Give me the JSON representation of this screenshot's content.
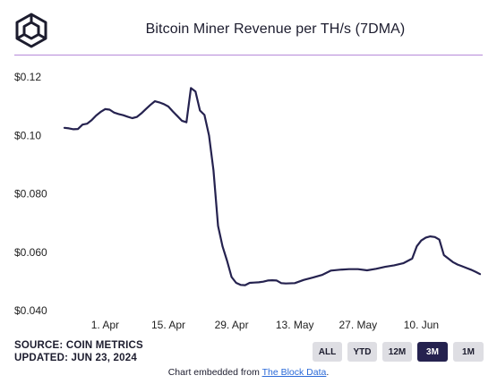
{
  "header": {
    "title": "Bitcoin Miner Revenue per TH/s (7DMA)"
  },
  "footer": {
    "source": "SOURCE: COIN METRICS",
    "updated": "UPDATED: JUN 23, 2024",
    "embed_prefix": "Chart embedded from ",
    "embed_link": "The Block Data",
    "embed_suffix": "."
  },
  "range_buttons": [
    {
      "label": "ALL",
      "active": false
    },
    {
      "label": "YTD",
      "active": false
    },
    {
      "label": "12M",
      "active": false
    },
    {
      "label": "3M",
      "active": true
    },
    {
      "label": "1M",
      "active": false
    }
  ],
  "colors": {
    "line": "#25224f",
    "accent_rule": "#b68ad9",
    "active_button": "#25224f",
    "button": "#dedee3"
  },
  "chart_data": {
    "type": "line",
    "title": "Bitcoin Miner Revenue per TH/s (7DMA)",
    "xlabel": "",
    "ylabel": "",
    "y_tick_labels": [
      "$0.12",
      "$0.10",
      "$0.080",
      "$0.060",
      "$0.040"
    ],
    "y_ticks": [
      0.12,
      0.1,
      0.08,
      0.06,
      0.04
    ],
    "ylim": [
      0.04,
      0.12
    ],
    "x_tick_labels": [
      "1. Apr",
      "15. Apr",
      "29. Apr",
      "13. May",
      "27. May",
      "10. Jun"
    ],
    "x_ticks": [
      "2024-04-01",
      "2024-04-15",
      "2024-04-29",
      "2024-05-13",
      "2024-05-27",
      "2024-06-10"
    ],
    "xlim": [
      "2024-03-23",
      "2024-06-23"
    ],
    "grid": false,
    "series": [
      {
        "x": [
          "2024-03-23",
          "2024-03-24",
          "2024-03-25",
          "2024-03-26",
          "2024-03-27",
          "2024-03-28",
          "2024-03-29",
          "2024-03-30",
          "2024-03-31",
          "2024-04-01",
          "2024-04-02",
          "2024-04-03",
          "2024-04-04",
          "2024-04-05",
          "2024-04-06",
          "2024-04-07",
          "2024-04-08",
          "2024-04-09",
          "2024-04-10",
          "2024-04-11",
          "2024-04-12",
          "2024-04-13",
          "2024-04-14",
          "2024-04-15",
          "2024-04-16",
          "2024-04-17",
          "2024-04-18",
          "2024-04-19",
          "2024-04-20",
          "2024-04-21",
          "2024-04-22",
          "2024-04-23",
          "2024-04-24",
          "2024-04-25",
          "2024-04-26",
          "2024-04-27",
          "2024-04-28",
          "2024-04-29",
          "2024-04-30",
          "2024-05-01",
          "2024-05-02",
          "2024-05-03",
          "2024-05-04",
          "2024-05-05",
          "2024-05-06",
          "2024-05-07",
          "2024-05-08",
          "2024-05-09",
          "2024-05-10",
          "2024-05-11",
          "2024-05-13",
          "2024-05-15",
          "2024-05-17",
          "2024-05-19",
          "2024-05-21",
          "2024-05-23",
          "2024-05-25",
          "2024-05-27",
          "2024-05-29",
          "2024-05-31",
          "2024-06-02",
          "2024-06-04",
          "2024-06-06",
          "2024-06-08",
          "2024-06-09",
          "2024-06-10",
          "2024-06-11",
          "2024-06-12",
          "2024-06-13",
          "2024-06-14",
          "2024-06-15",
          "2024-06-16",
          "2024-06-17",
          "2024-06-18",
          "2024-06-19",
          "2024-06-20",
          "2024-06-21",
          "2024-06-22",
          "2024-06-23"
        ],
        "y": [
          0.1026,
          0.1024,
          0.1021,
          0.1022,
          0.1037,
          0.104,
          0.1052,
          0.1068,
          0.108,
          0.109,
          0.1088,
          0.1078,
          0.1073,
          0.1069,
          0.1064,
          0.1059,
          0.1063,
          0.1075,
          0.109,
          0.1104,
          0.1117,
          0.1113,
          0.1107,
          0.1099,
          0.1082,
          0.1066,
          0.105,
          0.1045,
          0.1162,
          0.115,
          0.1085,
          0.107,
          0.1,
          0.088,
          0.069,
          0.062,
          0.057,
          0.0515,
          0.0495,
          0.0488,
          0.0487,
          0.0495,
          0.0496,
          0.0497,
          0.0499,
          0.0503,
          0.0504,
          0.0503,
          0.0494,
          0.0493,
          0.0494,
          0.0505,
          0.0513,
          0.0522,
          0.0537,
          0.054,
          0.0542,
          0.0542,
          0.0538,
          0.0543,
          0.055,
          0.0555,
          0.0562,
          0.0578,
          0.062,
          0.064,
          0.065,
          0.0654,
          0.0652,
          0.0643,
          0.059,
          0.0578,
          0.0566,
          0.0558,
          0.0552,
          0.0546,
          0.054,
          0.0533,
          0.0525
        ]
      }
    ]
  }
}
